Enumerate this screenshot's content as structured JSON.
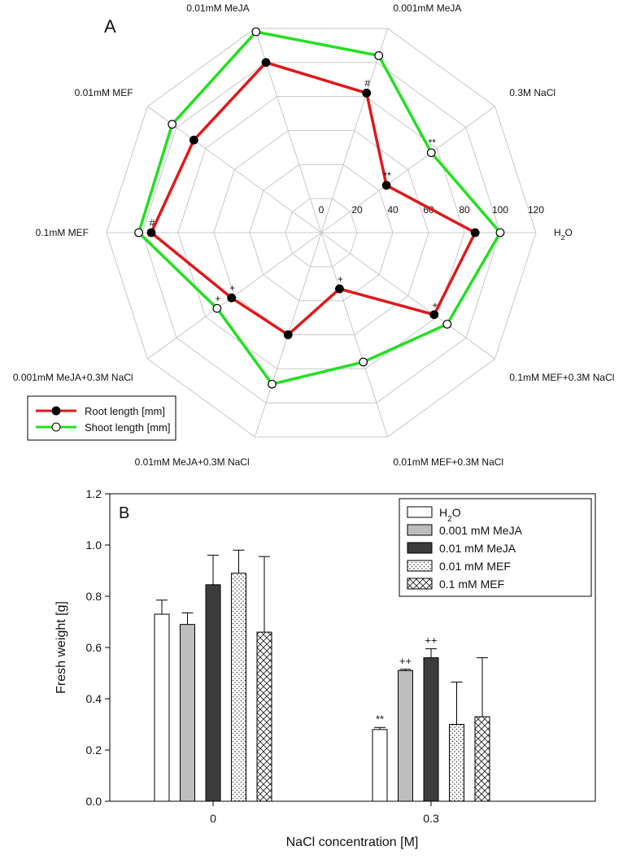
{
  "colors": {
    "root": "#e0181a",
    "shoot": "#22e022",
    "grid": "#c8c8c8",
    "axis": "#000000",
    "bar_gray": "#bdbdbd",
    "bar_dark": "#3c3c3c"
  },
  "chart_data": [
    {
      "type": "radar",
      "panel_label": "A",
      "radial_ticks": [
        "0",
        "20",
        "40",
        "60",
        "80",
        "100",
        "120"
      ],
      "rmax": 120,
      "categories": [
        "H2O",
        "0.3M NaCl",
        "0.001mM MeJA",
        "0.01mM MeJA",
        "0.01mM MEF",
        "0.1mM MEF",
        "0.001mM MeJA+0.3M NaCl",
        "0.01mM MeJA+0.3M NaCl",
        "0.01mM MEF+0.3M NaCl",
        "0.1mM MEF+0.3M NaCl"
      ],
      "series": [
        {
          "name": "Root length [mm]",
          "values": [
            86,
            45,
            82,
            100,
            88,
            95,
            62,
            60,
            33,
            78
          ],
          "annotations": [
            "",
            "**",
            "#",
            "",
            "",
            "#",
            "+",
            "",
            "+",
            "+"
          ]
        },
        {
          "name": "Shoot length [mm]",
          "values": [
            100,
            76,
            104,
            118,
            103,
            102,
            72,
            89,
            76,
            87
          ],
          "annotations": [
            "",
            "**",
            "",
            "",
            "",
            "",
            "+",
            "",
            "",
            ""
          ]
        }
      ],
      "legend": "bottom-left"
    },
    {
      "type": "bar",
      "panel_label": "B",
      "xlabel": "NaCl concentration [M]",
      "ylabel": "Fresh weight [g]",
      "categories": [
        "0",
        "0.3"
      ],
      "ylim": [
        0.0,
        1.2
      ],
      "yticks": [
        "0.0",
        "0.2",
        "0.4",
        "0.6",
        "0.8",
        "1.0",
        "1.2"
      ],
      "series": [
        {
          "name": "H2O",
          "values": [
            0.73,
            0.28
          ],
          "errors": [
            0.055,
            0.008
          ],
          "annotations": [
            "",
            "**"
          ],
          "pattern": "white"
        },
        {
          "name": "0.001 mM MeJA",
          "values": [
            0.69,
            0.51
          ],
          "errors": [
            0.045,
            0.005
          ],
          "annotations": [
            "",
            "++"
          ],
          "pattern": "gray"
        },
        {
          "name": "0.01 mM MeJA",
          "values": [
            0.845,
            0.56
          ],
          "errors": [
            0.115,
            0.035
          ],
          "annotations": [
            "",
            "++"
          ],
          "pattern": "dark"
        },
        {
          "name": "0.01 mM MEF",
          "values": [
            0.89,
            0.3
          ],
          "errors": [
            0.09,
            0.165
          ],
          "annotations": [
            "",
            ""
          ],
          "pattern": "dots"
        },
        {
          "name": "0.1 mM MEF",
          "values": [
            0.66,
            0.33
          ],
          "errors": [
            0.295,
            0.23
          ],
          "annotations": [
            "",
            ""
          ],
          "pattern": "cross"
        }
      ],
      "legend": "top-right"
    }
  ]
}
